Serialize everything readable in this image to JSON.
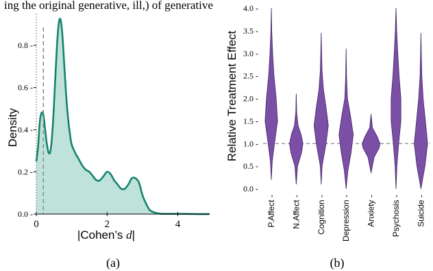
{
  "header_fragment": "ing the original generative, ill,) of generative",
  "chart_data": [
    {
      "panel": "(a)",
      "type": "area",
      "xlabel_parts": [
        "|Cohen’s ",
        "d",
        "|"
      ],
      "ylabel": "Density",
      "xlim": [
        0,
        4.9
      ],
      "ylim": [
        0,
        0.95
      ],
      "x_ticks": [
        "0",
        "2",
        "4"
      ],
      "x_tick_values": [
        0,
        2,
        4
      ],
      "y_ticks": [
        "0.0",
        "0.2",
        "0.4",
        "0.6",
        "0.8"
      ],
      "y_tick_values": [
        0,
        0.2,
        0.4,
        0.6,
        0.8
      ],
      "reference_lines": {
        "dotted_x": 0.0,
        "dashed_x": 0.2
      },
      "series": [
        {
          "x": [
            0.0,
            0.05,
            0.1,
            0.15,
            0.2,
            0.25,
            0.3,
            0.35,
            0.4,
            0.45,
            0.5,
            0.55,
            0.6,
            0.65,
            0.7,
            0.75,
            0.8,
            0.85,
            0.9,
            0.95,
            1.0,
            1.1,
            1.2,
            1.3,
            1.4,
            1.5,
            1.6,
            1.7,
            1.8,
            1.9,
            2.0,
            2.1,
            2.2,
            2.3,
            2.4,
            2.5,
            2.6,
            2.7,
            2.8,
            2.9,
            3.0,
            3.1,
            3.2,
            3.3,
            3.4,
            3.5,
            3.6,
            3.8,
            4.0,
            4.5,
            4.9
          ],
          "y": [
            0.25,
            0.32,
            0.44,
            0.48,
            0.47,
            0.4,
            0.33,
            0.29,
            0.3,
            0.38,
            0.52,
            0.69,
            0.84,
            0.92,
            0.91,
            0.82,
            0.68,
            0.55,
            0.45,
            0.38,
            0.33,
            0.29,
            0.26,
            0.23,
            0.21,
            0.2,
            0.18,
            0.16,
            0.16,
            0.18,
            0.2,
            0.19,
            0.16,
            0.14,
            0.12,
            0.12,
            0.14,
            0.17,
            0.17,
            0.15,
            0.09,
            0.05,
            0.02,
            0.01,
            0.005,
            0.002,
            0.001,
            0.001,
            0.001,
            0.0,
            0.0
          ]
        }
      ],
      "colors": {
        "line": "#14836e",
        "fill": "#bfe3db",
        "ref_line": "#888888"
      }
    },
    {
      "panel": "(b)",
      "type": "violin",
      "ylabel": "Relative Treatment Effect",
      "ylim": [
        0,
        4.0
      ],
      "y_ticks": [
        "0.0",
        "0.5",
        "1.0",
        "1.5",
        "2.0",
        "2.5",
        "3.0",
        "3.5",
        "4.0"
      ],
      "y_tick_values": [
        0,
        0.5,
        1.0,
        1.5,
        2.0,
        2.5,
        3.0,
        3.5,
        4.0
      ],
      "categories": [
        "P.Affect",
        "N.Affect",
        "Cognition",
        "Depression",
        "Anxiety",
        "Psychosis",
        "Suicide"
      ],
      "reference_line": 1.0,
      "violins": [
        {
          "ys": [
            0.2,
            0.6,
            1.0,
            1.5,
            2.0,
            2.5,
            3.0,
            3.5,
            4.0
          ],
          "ws": [
            0.0,
            0.1,
            0.35,
            0.7,
            0.55,
            0.3,
            0.15,
            0.05,
            0.0
          ]
        },
        {
          "ys": [
            0.1,
            0.5,
            0.8,
            1.0,
            1.2,
            1.4,
            1.7,
            2.1
          ],
          "ws": [
            0.0,
            0.15,
            0.6,
            0.75,
            0.55,
            0.2,
            0.05,
            0.0
          ]
        },
        {
          "ys": [
            0.1,
            0.5,
            1.0,
            1.4,
            1.8,
            2.2,
            2.6,
            3.0,
            3.45
          ],
          "ws": [
            0.0,
            0.1,
            0.55,
            0.8,
            0.55,
            0.25,
            0.1,
            0.05,
            0.0
          ]
        },
        {
          "ys": [
            0.0,
            0.4,
            0.8,
            1.2,
            1.6,
            2.0,
            2.5,
            3.1
          ],
          "ws": [
            0.0,
            0.2,
            0.55,
            0.8,
            0.5,
            0.15,
            0.05,
            0.0
          ]
        },
        {
          "ys": [
            0.35,
            0.7,
            0.9,
            1.0,
            1.15,
            1.35,
            1.65
          ],
          "ws": [
            0.0,
            0.35,
            0.9,
            1.0,
            0.7,
            0.15,
            0.0
          ]
        },
        {
          "ys": [
            0.0,
            0.5,
            1.0,
            1.5,
            2.0,
            2.5,
            3.0,
            3.5,
            4.0
          ],
          "ws": [
            0.0,
            0.1,
            0.3,
            0.55,
            0.55,
            0.35,
            0.2,
            0.08,
            0.0
          ]
        },
        {
          "ys": [
            0.0,
            0.5,
            1.0,
            1.5,
            2.0,
            2.5,
            3.0,
            3.45
          ],
          "ws": [
            0.0,
            0.45,
            0.75,
            0.5,
            0.25,
            0.1,
            0.04,
            0.0
          ]
        }
      ],
      "colors": {
        "fill": "#7b4fa6",
        "outline": "#4a2c6a",
        "ref_line": "#888888"
      }
    }
  ]
}
